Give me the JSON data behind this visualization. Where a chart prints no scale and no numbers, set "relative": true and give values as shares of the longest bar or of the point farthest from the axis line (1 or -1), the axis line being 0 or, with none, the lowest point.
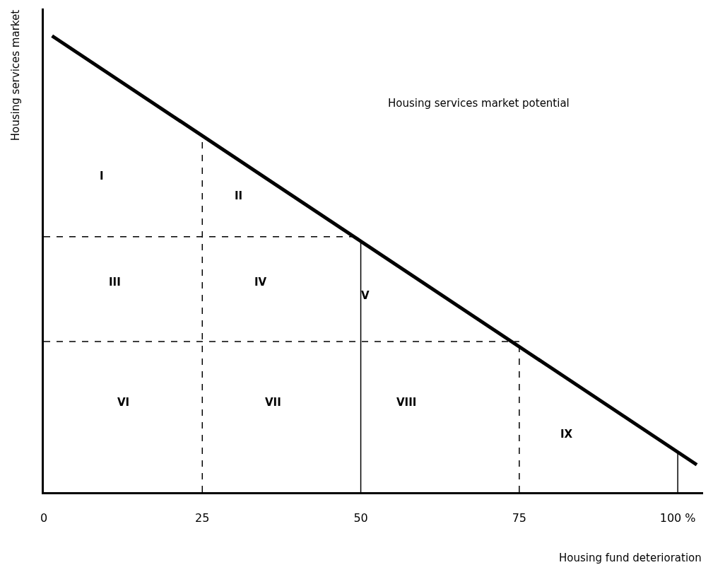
{
  "chart_data": {
    "type": "line",
    "relative": true,
    "xlabel": "Housing fund deterioration",
    "ylabel": "Housing services market",
    "xlim": [
      0,
      104
    ],
    "xticks": [
      0,
      25,
      50,
      75,
      {
        "value": 100,
        "label": "100 %"
      }
    ],
    "tick_labels": "x",
    "marker": "none",
    "series": [
      {
        "color": "#000000",
        "line_style": "solid",
        "x": [
          1.3,
          103
        ],
        "values": [
          1,
          0.06
        ]
      },
      {
        "color": "#000000",
        "line_style": "dashed",
        "x": [
          0,
          50
        ],
        "values": [
          0.56,
          0.56
        ]
      },
      {
        "color": "#000000",
        "line_style": "dashed",
        "x": [
          0,
          75
        ],
        "values": [
          0.33,
          0.33
        ]
      },
      {
        "color": "#000000",
        "line_style": "dashed",
        "x": [
          25,
          25
        ],
        "values": [
          0,
          0.78
        ]
      },
      {
        "color": "#000000",
        "line_style": "solid",
        "x": [
          50,
          50
        ],
        "values": [
          0,
          0.55
        ]
      },
      {
        "color": "#000000",
        "line_style": "dashed",
        "x": [
          75,
          75
        ],
        "values": [
          0,
          0.33
        ]
      },
      {
        "color": "#000000",
        "line_style": "solid",
        "x": [
          100,
          100
        ],
        "values": [
          0,
          0.088
        ]
      }
    ],
    "annotations": [
      "Housing services market potential",
      "I",
      "II",
      "III",
      "IV",
      "V",
      "VI",
      "VII",
      "VIII",
      "IX"
    ]
  }
}
